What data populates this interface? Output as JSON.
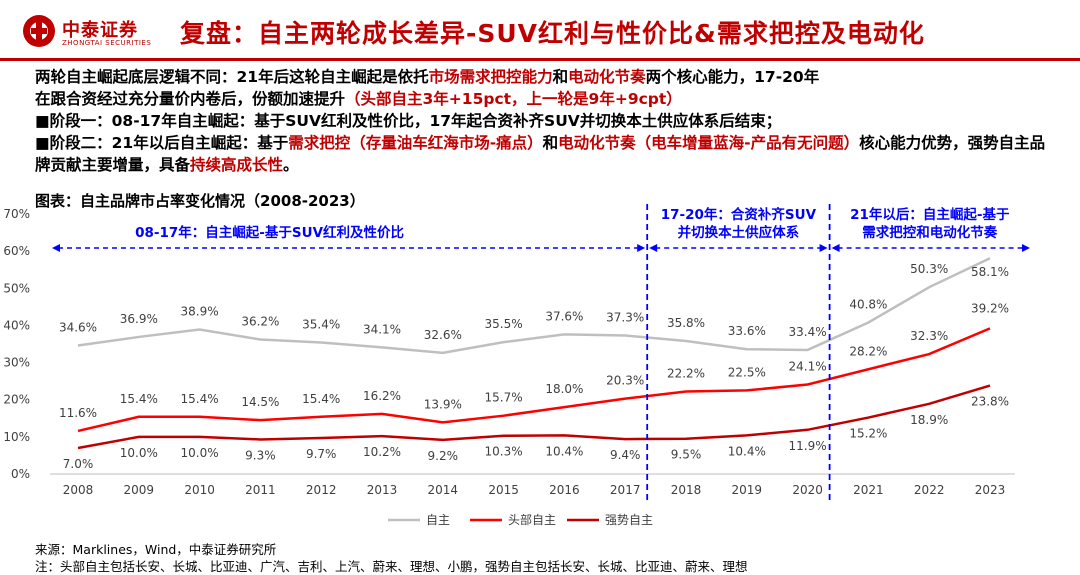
{
  "header": {
    "logo_cn": "中泰证券",
    "logo_en": "ZHONGTAI SECURITIES",
    "title": "复盘：自主两轮成长差异-SUV红利与性价比&需求把控及电动化"
  },
  "intro": {
    "line1_a": "两轮自主崛起底层逻辑不同：21年后这轮自主崛起是依托",
    "line1_b": "市场需求把控能力",
    "line1_c": "和",
    "line1_d": "电动化节奏",
    "line1_e": "两个核心能力，17-20年",
    "line2_a": "在跟合资经过充分量价内卷后，份额加速提升",
    "line2_b": "（头部自主3年+15pct，上一轮是9年+9cpt）"
  },
  "stage1": "■阶段一：08-17年自主崛起：基于SUV红利及性价比，17年起合资补齐SUV并切换本土供应体系后结束；",
  "stage2": {
    "a": "■阶段二：21年以后自主崛起：基于",
    "b": "需求把控（存量油车红海市场-痛点）",
    "c": "和",
    "d": "电动化节奏（电车增量蓝海-产品有无问题）",
    "e": "核心能力优势，强势自主品牌贡献主要增量，具备",
    "f": "持续高成长性",
    "g": "。"
  },
  "caption": "图表：自主品牌市占率变化情况（2008-2023）",
  "colors": {
    "accent": "#c00000",
    "series_light": "#bfbfbf",
    "series_mid": "#ff0000",
    "series_dark": "#c00000",
    "annotation": "#0000ff"
  },
  "chart_data": {
    "type": "line",
    "title": "自主品牌市占率变化情况（2008-2023）",
    "categories": [
      "2008",
      "2009",
      "2010",
      "2011",
      "2012",
      "2013",
      "2014",
      "2015",
      "2016",
      "2017",
      "2018",
      "2019",
      "2020",
      "2021",
      "2022",
      "2023"
    ],
    "series": [
      {
        "name": "自主",
        "values": [
          34.6,
          36.9,
          38.9,
          36.2,
          35.4,
          34.1,
          32.6,
          35.5,
          37.6,
          37.3,
          35.8,
          33.6,
          33.4,
          40.8,
          50.3,
          58.1
        ],
        "labels": [
          "34.6%",
          "36.9%",
          "38.9%",
          "36.2%",
          "35.4%",
          "34.1%",
          "32.6%",
          "35.5%",
          "37.6%",
          "37.3%",
          "35.8%",
          "33.6%",
          "33.4%",
          "40.8%",
          "50.3%",
          "58.1%"
        ]
      },
      {
        "name": "头部自主",
        "values": [
          11.6,
          15.4,
          15.4,
          14.5,
          15.4,
          16.2,
          13.9,
          15.7,
          18.0,
          20.3,
          22.2,
          22.5,
          24.1,
          28.2,
          32.3,
          39.2
        ],
        "labels": [
          "11.6%",
          "15.4%",
          "15.4%",
          "14.5%",
          "15.4%",
          "16.2%",
          "13.9%",
          "15.7%",
          "18.0%",
          "20.3%",
          "22.2%",
          "22.5%",
          "24.1%",
          "28.2%",
          "32.3%",
          "39.2%"
        ]
      },
      {
        "name": "强势自主",
        "values": [
          7.0,
          10.0,
          10.0,
          9.3,
          9.7,
          10.2,
          9.2,
          10.3,
          10.4,
          9.4,
          9.5,
          10.4,
          11.9,
          15.2,
          18.9,
          23.8
        ],
        "labels": [
          "7.0%",
          "10.0%",
          "10.0%",
          "9.3%",
          "9.7%",
          "10.2%",
          "9.2%",
          "10.3%",
          "10.4%",
          "9.4%",
          "9.5%",
          "10.4%",
          "11.9%",
          "15.2%",
          "18.9%",
          "23.8%"
        ]
      }
    ],
    "ylim": [
      0,
      70
    ],
    "yticks": [
      "0%",
      "10%",
      "20%",
      "30%",
      "40%",
      "50%",
      "60%",
      "70%"
    ],
    "grid": false,
    "legend": "bottom",
    "annotations": [
      {
        "text": "08-17年：自主崛起-基于SUV红利及性价比",
        "from": "2008",
        "to": "2017"
      },
      {
        "text_line1": "17-20年：合资补齐SUV",
        "text_line2": "并切换本土供应体系",
        "from": "2017",
        "to": "2020"
      },
      {
        "text_line1": "21年以后：自主崛起-基于",
        "text_line2": "需求把控和电动化节奏",
        "from": "2020",
        "to": "2023"
      }
    ]
  },
  "footer": {
    "source": "来源：Marklines，Wind，中泰证券研究所",
    "note": "注：头部自主包括长安、长城、比亚迪、广汽、吉利、上汽、蔚来、理想、小鹏，强势自主包括长安、长城、比亚迪、蔚来、理想"
  }
}
